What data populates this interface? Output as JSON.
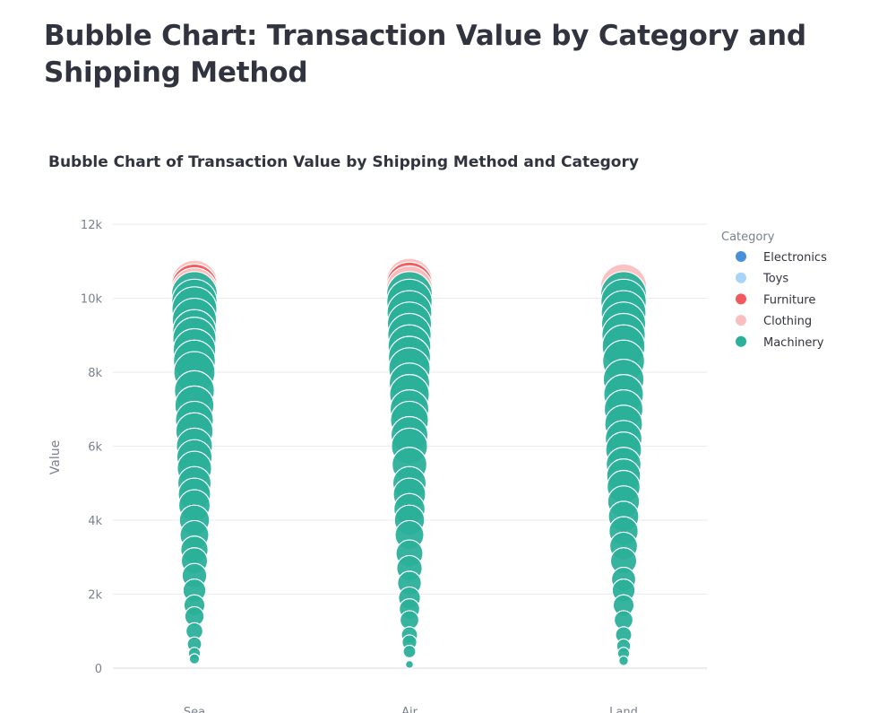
{
  "page": {
    "title": "Bubble Chart: Transaction Value by Category and Shipping Method"
  },
  "chart_data": {
    "type": "scatter",
    "title": "Bubble Chart of Transaction Value by Shipping Method and Category",
    "xlabel": "",
    "ylabel": "Value",
    "categories": [
      "Sea",
      "Air",
      "Land"
    ],
    "ylim": [
      0,
      12000
    ],
    "yticks": [
      0,
      2000,
      4000,
      6000,
      8000,
      10000,
      12000
    ],
    "ytick_labels": [
      "0",
      "2k",
      "4k",
      "6k",
      "8k",
      "10k",
      "12k"
    ],
    "grid": true,
    "bubble_size": "proportional to Value",
    "legend": {
      "title": "Category",
      "placement": "top-right",
      "entries": [
        {
          "name": "Electronics",
          "color": "#4a90d9"
        },
        {
          "name": "Toys",
          "color": "#a9d3f7"
        },
        {
          "name": "Furniture",
          "color": "#f2595c"
        },
        {
          "name": "Clothing",
          "color": "#fbbfc0"
        },
        {
          "name": "Machinery",
          "color": "#2bb09a"
        }
      ]
    },
    "series": [
      {
        "name": "Clothing",
        "color": "#fbbfc0",
        "points": [
          {
            "x": "Sea",
            "y": 10400
          },
          {
            "x": "Sea",
            "y": 10200
          },
          {
            "x": "Air",
            "y": 10450
          },
          {
            "x": "Air",
            "y": 10250
          },
          {
            "x": "Land",
            "y": 10300
          }
        ]
      },
      {
        "name": "Furniture",
        "color": "#f2595c",
        "points": [
          {
            "x": "Sea",
            "y": 10300
          },
          {
            "x": "Air",
            "y": 10350
          }
        ]
      },
      {
        "name": "Machinery",
        "color": "#2bb09a",
        "points": [
          {
            "x": "Sea",
            "y": 10100
          },
          {
            "x": "Sea",
            "y": 9900
          },
          {
            "x": "Sea",
            "y": 9700
          },
          {
            "x": "Sea",
            "y": 9400
          },
          {
            "x": "Sea",
            "y": 9100
          },
          {
            "x": "Sea",
            "y": 8900
          },
          {
            "x": "Sea",
            "y": 8600
          },
          {
            "x": "Sea",
            "y": 8300
          },
          {
            "x": "Sea",
            "y": 8000
          },
          {
            "x": "Sea",
            "y": 7500
          },
          {
            "x": "Sea",
            "y": 7100
          },
          {
            "x": "Sea",
            "y": 6700
          },
          {
            "x": "Sea",
            "y": 6400
          },
          {
            "x": "Sea",
            "y": 6000
          },
          {
            "x": "Sea",
            "y": 5700
          },
          {
            "x": "Sea",
            "y": 5400
          },
          {
            "x": "Sea",
            "y": 5000
          },
          {
            "x": "Sea",
            "y": 4700
          },
          {
            "x": "Sea",
            "y": 4400
          },
          {
            "x": "Sea",
            "y": 4000
          },
          {
            "x": "Sea",
            "y": 3600
          },
          {
            "x": "Sea",
            "y": 3200
          },
          {
            "x": "Sea",
            "y": 2900
          },
          {
            "x": "Sea",
            "y": 2500
          },
          {
            "x": "Sea",
            "y": 2100
          },
          {
            "x": "Sea",
            "y": 1700
          },
          {
            "x": "Sea",
            "y": 1400
          },
          {
            "x": "Sea",
            "y": 1000
          },
          {
            "x": "Sea",
            "y": 650
          },
          {
            "x": "Sea",
            "y": 400
          },
          {
            "x": "Sea",
            "y": 250
          },
          {
            "x": "Air",
            "y": 10100
          },
          {
            "x": "Air",
            "y": 9900
          },
          {
            "x": "Air",
            "y": 9600
          },
          {
            "x": "Air",
            "y": 9300
          },
          {
            "x": "Air",
            "y": 9000
          },
          {
            "x": "Air",
            "y": 8700
          },
          {
            "x": "Air",
            "y": 8400
          },
          {
            "x": "Air",
            "y": 8100
          },
          {
            "x": "Air",
            "y": 7700
          },
          {
            "x": "Air",
            "y": 7400
          },
          {
            "x": "Air",
            "y": 7000
          },
          {
            "x": "Air",
            "y": 6700
          },
          {
            "x": "Air",
            "y": 6300
          },
          {
            "x": "Air",
            "y": 6000
          },
          {
            "x": "Air",
            "y": 5500
          },
          {
            "x": "Air",
            "y": 5000
          },
          {
            "x": "Air",
            "y": 4700
          },
          {
            "x": "Air",
            "y": 4300
          },
          {
            "x": "Air",
            "y": 4000
          },
          {
            "x": "Air",
            "y": 3600
          },
          {
            "x": "Air",
            "y": 3100
          },
          {
            "x": "Air",
            "y": 2700
          },
          {
            "x": "Air",
            "y": 2300
          },
          {
            "x": "Air",
            "y": 1900
          },
          {
            "x": "Air",
            "y": 1600
          },
          {
            "x": "Air",
            "y": 1300
          },
          {
            "x": "Air",
            "y": 900
          },
          {
            "x": "Air",
            "y": 700
          },
          {
            "x": "Air",
            "y": 450
          },
          {
            "x": "Air",
            "y": 100
          },
          {
            "x": "Land",
            "y": 10100
          },
          {
            "x": "Land",
            "y": 9900
          },
          {
            "x": "Land",
            "y": 9600
          },
          {
            "x": "Land",
            "y": 9300
          },
          {
            "x": "Land",
            "y": 9000
          },
          {
            "x": "Land",
            "y": 8700
          },
          {
            "x": "Land",
            "y": 8300
          },
          {
            "x": "Land",
            "y": 7800
          },
          {
            "x": "Land",
            "y": 7400
          },
          {
            "x": "Land",
            "y": 7000
          },
          {
            "x": "Land",
            "y": 6600
          },
          {
            "x": "Land",
            "y": 6200
          },
          {
            "x": "Land",
            "y": 5900
          },
          {
            "x": "Land",
            "y": 5500
          },
          {
            "x": "Land",
            "y": 5200
          },
          {
            "x": "Land",
            "y": 4900
          },
          {
            "x": "Land",
            "y": 4500
          },
          {
            "x": "Land",
            "y": 4100
          },
          {
            "x": "Land",
            "y": 3700
          },
          {
            "x": "Land",
            "y": 3300
          },
          {
            "x": "Land",
            "y": 2900
          },
          {
            "x": "Land",
            "y": 2400
          },
          {
            "x": "Land",
            "y": 2100
          },
          {
            "x": "Land",
            "y": 1700
          },
          {
            "x": "Land",
            "y": 1300
          },
          {
            "x": "Land",
            "y": 900
          },
          {
            "x": "Land",
            "y": 600
          },
          {
            "x": "Land",
            "y": 400
          },
          {
            "x": "Land",
            "y": 200
          }
        ]
      }
    ]
  }
}
